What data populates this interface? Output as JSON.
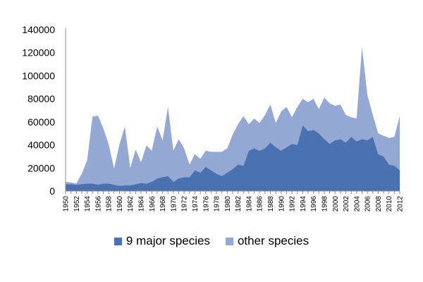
{
  "colors": {
    "major": "#4a72b0",
    "other": "#94a8d4",
    "axis": "#8c8c8c"
  },
  "chart_data": {
    "type": "area",
    "stacked": true,
    "title": "",
    "xlabel": "",
    "ylabel": "",
    "ylim": [
      0,
      140000
    ],
    "yticks": [
      "0",
      "20000",
      "40000",
      "60000",
      "80000",
      "100000",
      "120000",
      "140000"
    ],
    "xticks": [
      "1950",
      "1952",
      "1954",
      "1956",
      "1958",
      "1960",
      "1962",
      "1964",
      "1966",
      "1968",
      "1970",
      "1972",
      "1974",
      "1976",
      "1978",
      "1980",
      "1982",
      "1984",
      "1986",
      "1988",
      "1990",
      "1992",
      "1994",
      "1996",
      "1998",
      "2000",
      "2002",
      "2004",
      "2006",
      "2008",
      "2010",
      "2012"
    ],
    "legend_position": "bottom",
    "x": [
      1950,
      1951,
      1952,
      1953,
      1954,
      1955,
      1956,
      1957,
      1958,
      1959,
      1960,
      1961,
      1962,
      1963,
      1964,
      1965,
      1966,
      1967,
      1968,
      1969,
      1970,
      1971,
      1972,
      1973,
      1974,
      1975,
      1976,
      1977,
      1978,
      1979,
      1980,
      1981,
      1982,
      1983,
      1984,
      1985,
      1986,
      1987,
      1988,
      1989,
      1990,
      1991,
      1992,
      1993,
      1994,
      1995,
      1996,
      1997,
      1998,
      1999,
      2000,
      2001,
      2002,
      2003,
      2004,
      2005,
      2006,
      2007,
      2008,
      2009,
      2010,
      2011,
      2012
    ],
    "series": [
      {
        "name": "9 major species",
        "values": [
          6000,
          6000,
          5500,
          6000,
          6500,
          6500,
          5500,
          6500,
          6500,
          5500,
          4500,
          5000,
          5000,
          6000,
          7000,
          6500,
          8000,
          11000,
          12000,
          13000,
          8000,
          11000,
          12000,
          12000,
          18000,
          16000,
          21000,
          18000,
          15000,
          13000,
          16000,
          19000,
          23000,
          22000,
          35000,
          37000,
          35000,
          37000,
          42000,
          38000,
          35000,
          38000,
          41000,
          40000,
          57000,
          52000,
          53000,
          50000,
          45000,
          41000,
          44000,
          45000,
          42000,
          47000,
          43000,
          45000,
          44000,
          47000,
          32000,
          30000,
          23000,
          22000,
          18000
        ]
      },
      {
        "name": "other species",
        "values": [
          2000,
          1500,
          1000,
          9000,
          20000,
          58000,
          60000,
          48000,
          34000,
          14000,
          36000,
          51000,
          15000,
          30000,
          18000,
          33000,
          27000,
          45000,
          32000,
          60000,
          27000,
          34000,
          25000,
          11000,
          14000,
          12000,
          14000,
          16000,
          19000,
          21000,
          21000,
          30000,
          35000,
          43000,
          23000,
          26000,
          24000,
          29000,
          33000,
          21000,
          34000,
          35000,
          23000,
          33000,
          23000,
          25000,
          27000,
          21000,
          36000,
          35000,
          30000,
          30000,
          24000,
          17000,
          20000,
          80000,
          39000,
          19000,
          18000,
          18000,
          23000,
          25000,
          47000
        ]
      }
    ]
  }
}
